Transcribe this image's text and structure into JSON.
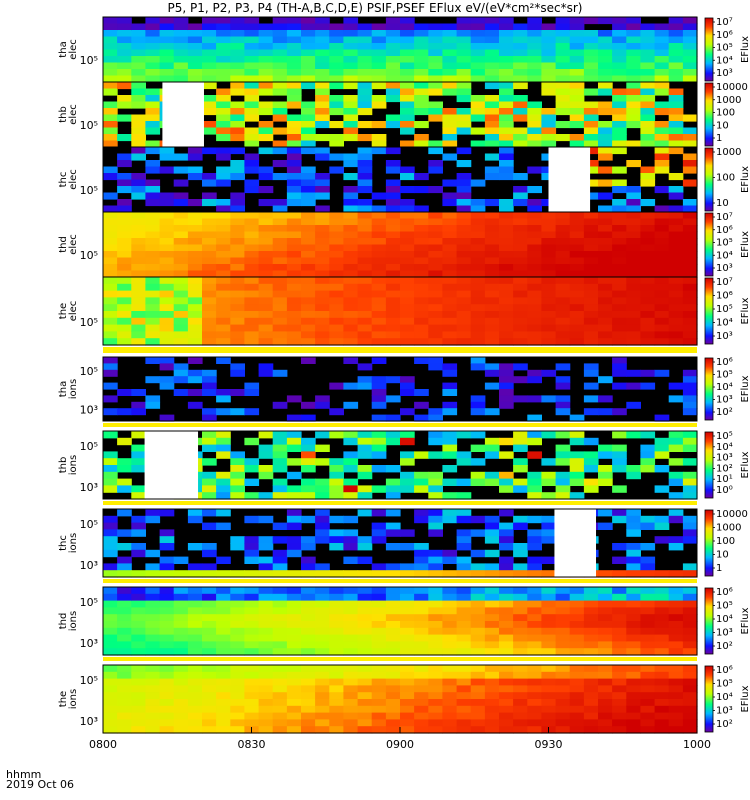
{
  "title": "P5, P1, P2, P3, P4 (TH-A,B,C,D,E) PSIF,PSEF EFlux eV/(eV*cm²*sec*sr)",
  "footer": {
    "line1": "hhmm",
    "line2": "2019 Oct 06"
  },
  "chart_data": {
    "type": "heatmap",
    "x_ticks": [
      "0800",
      "0830",
      "0900",
      "0930",
      "1000"
    ],
    "x_range": [
      "08:00",
      "10:00"
    ],
    "colorscale": "rainbow (violet-blue-cyan-green-yellow-red)",
    "panels": [
      {
        "name": "tha elec",
        "label": [
          "tha",
          "elec"
        ],
        "y_tick": "10⁵",
        "cbar_labels": [
          "10⁷",
          "10⁶",
          "10⁵",
          "10⁴",
          "10³"
        ],
        "cbar_title": "EFlux",
        "gaps": [],
        "profile": "cool"
      },
      {
        "name": "thb elec",
        "label": [
          "thb",
          "elec"
        ],
        "y_tick": "10⁵",
        "cbar_labels": [
          "10000",
          "1000",
          "100",
          "10",
          "1"
        ],
        "cbar_title": "",
        "gaps": [
          [
            0.1,
            0.17
          ]
        ],
        "profile": "patchy"
      },
      {
        "name": "thc elec",
        "label": [
          "thc",
          "elec"
        ],
        "y_tick": "10⁵",
        "cbar_labels": [
          "1000",
          "100",
          "10"
        ],
        "cbar_title": "EFlux",
        "gaps": [
          [
            0.75,
            0.82
          ]
        ],
        "profile": "sparse"
      },
      {
        "name": "thd elec",
        "label": [
          "thd",
          "elec"
        ],
        "y_tick": "10⁵",
        "cbar_labels": [
          "10⁷",
          "10⁶",
          "10⁵",
          "10⁴",
          "10³"
        ],
        "cbar_title": "EFlux",
        "gaps": [],
        "profile": "hot"
      },
      {
        "name": "the elec",
        "label": [
          "the",
          "elec"
        ],
        "y_tick": "10⁵",
        "cbar_labels": [
          "10⁷",
          "10⁶",
          "10⁵",
          "10⁴",
          "10³"
        ],
        "cbar_title": "EFlux",
        "gaps": [],
        "profile": "hot-edge"
      },
      {
        "name": "tha ions",
        "label": [
          "tha",
          "ions"
        ],
        "y_tick": "10⁵",
        "y_tick2": "10³",
        "cbar_labels": [
          "10⁶",
          "10⁵",
          "10⁴",
          "10³",
          "10²"
        ],
        "cbar_title": "EFlux",
        "gaps": [],
        "profile": "dark"
      },
      {
        "name": "thb ions",
        "label": [
          "thb",
          "ions"
        ],
        "y_tick": "10⁵",
        "y_tick2": "10³",
        "cbar_labels": [
          "10⁵",
          "10⁴",
          "10³",
          "10²",
          "10¹",
          "10⁰"
        ],
        "cbar_title": "EFlux",
        "gaps": [
          [
            0.07,
            0.16
          ]
        ],
        "profile": "bands"
      },
      {
        "name": "thc ions",
        "label": [
          "thc",
          "ions"
        ],
        "y_tick": "10⁵",
        "y_tick2": "10³",
        "cbar_labels": [
          "10000",
          "1000",
          "100",
          "10",
          "1"
        ],
        "cbar_title": "",
        "gaps": [
          [
            0.76,
            0.83
          ]
        ],
        "profile": "dim-base"
      },
      {
        "name": "thd ions",
        "label": [
          "thd",
          "ions"
        ],
        "y_tick": "10⁵",
        "y_tick2": "10³",
        "cbar_labels": [
          "10⁶",
          "10⁵",
          "10⁴",
          "10³",
          "10²"
        ],
        "cbar_title": "EFlux",
        "gaps": [],
        "profile": "ramp"
      },
      {
        "name": "the ions",
        "label": [
          "the",
          "ions"
        ],
        "y_tick": "10⁵",
        "y_tick2": "10³",
        "cbar_labels": [
          "10⁶",
          "10⁵",
          "10⁴",
          "10³",
          "10²"
        ],
        "cbar_title": "EFlux",
        "gaps": [],
        "profile": "warm"
      }
    ]
  }
}
